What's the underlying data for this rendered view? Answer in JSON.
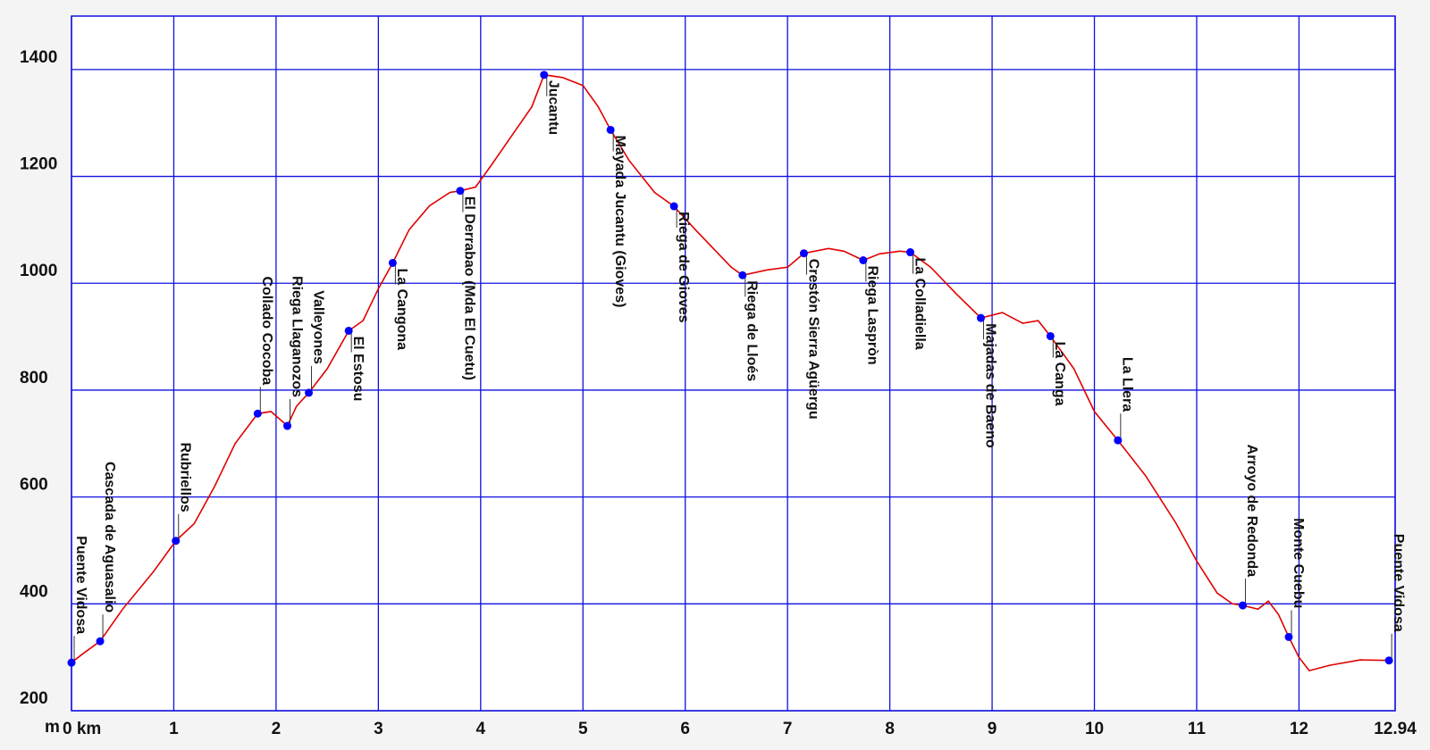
{
  "chart_data": {
    "type": "line",
    "ylabel": "m",
    "xlim": [
      0,
      12.94
    ],
    "ylim": [
      200,
      1500
    ],
    "xticks": [
      {
        "value": 0,
        "label": "0 km"
      },
      1,
      2,
      3,
      4,
      5,
      6,
      7,
      8,
      9,
      10,
      11,
      12,
      12.94
    ],
    "yticks": [
      200,
      400,
      600,
      800,
      1000,
      1200,
      1400
    ],
    "grid": true,
    "grid_color": "#1010e0",
    "series": [
      {
        "color": "#e00000",
        "x": [
          0,
          0.1,
          0.28,
          0.5,
          0.8,
          1.02,
          1.2,
          1.4,
          1.6,
          1.82,
          1.95,
          2.11,
          2.2,
          2.32,
          2.5,
          2.71,
          2.85,
          3.0,
          3.14,
          3.3,
          3.5,
          3.7,
          3.8,
          3.95,
          4.1,
          4.3,
          4.5,
          4.62,
          4.8,
          5.0,
          5.15,
          5.27,
          5.45,
          5.7,
          5.89,
          6.1,
          6.3,
          6.45,
          6.56,
          6.8,
          7.0,
          7.16,
          7.4,
          7.55,
          7.74,
          7.9,
          8.1,
          8.2,
          8.4,
          8.65,
          8.89,
          9.1,
          9.3,
          9.45,
          9.57,
          9.8,
          10.0,
          10.23,
          10.5,
          10.8,
          11.0,
          11.2,
          11.35,
          11.45,
          11.6,
          11.7,
          11.8,
          11.9,
          12.0,
          12.1,
          12.3,
          12.6,
          12.88
        ],
        "values": [
          290,
          305,
          330,
          390,
          460,
          518,
          550,
          620,
          700,
          756,
          760,
          733,
          770,
          795,
          840,
          911,
          930,
          990,
          1038,
          1100,
          1145,
          1170,
          1173,
          1180,
          1220,
          1275,
          1330,
          1390,
          1385,
          1370,
          1330,
          1287,
          1230,
          1170,
          1144,
          1100,
          1060,
          1030,
          1015,
          1025,
          1030,
          1056,
          1065,
          1060,
          1043,
          1055,
          1060,
          1058,
          1030,
          980,
          935,
          945,
          925,
          930,
          901,
          840,
          760,
          706,
          640,
          550,
          480,
          420,
          400,
          397,
          390,
          405,
          380,
          338,
          300,
          275,
          285,
          295,
          294
        ]
      }
    ],
    "points": {
      "color": "#0000ff",
      "labels": [
        "Puente Vidosa",
        "Cascada de Aguasalio",
        "Rubriellos",
        "Collado Cocoba",
        "Riega Llaganozos",
        "Valleyones",
        "El Estosu",
        "La Cangona",
        "El Derrabao (Mda El Cuetu)",
        "Jucantu",
        "Mayada Jucantu (Gioves)",
        "Riega de Gioves",
        "Riega de Lloés",
        "Crestón Sierra Agüergu",
        "Riega Laspròn",
        "La Colladiella",
        "Majadas de Baeno",
        "La Canga",
        "La Llera",
        "Arroyo de Redonda",
        "Monte Cuebu",
        "Puente Vidosa"
      ],
      "x": [
        0,
        0.28,
        1.02,
        1.82,
        2.11,
        2.32,
        2.71,
        3.14,
        3.8,
        4.62,
        5.27,
        5.89,
        6.56,
        7.16,
        7.74,
        8.2,
        8.89,
        9.57,
        10.23,
        11.45,
        11.9,
        12.88
      ],
      "values": [
        290,
        330,
        518,
        756,
        733,
        795,
        911,
        1038,
        1173,
        1390,
        1287,
        1144,
        1015,
        1056,
        1043,
        1058,
        935,
        901,
        706,
        397,
        338,
        294
      ]
    }
  }
}
